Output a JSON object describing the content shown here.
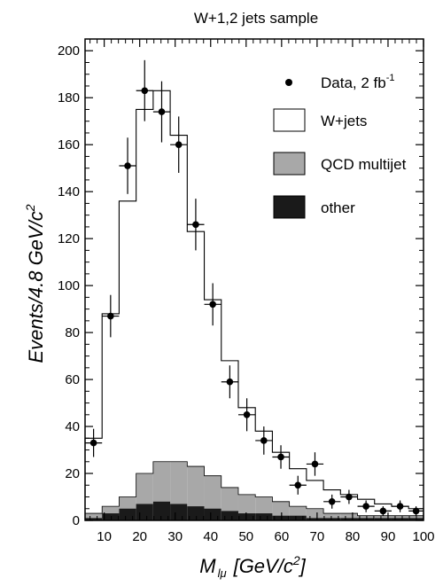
{
  "chart_data": {
    "type": "histogram",
    "title": "W+1,2 jets sample",
    "xlabel": {
      "main": "M",
      "sub": "lμ",
      "unit": "[GeV/c",
      "sup": "2",
      "close": "]"
    },
    "ylabel": {
      "main": "Events/4.8 GeV/c",
      "sup": "2"
    },
    "xlim": [
      4.6,
      100
    ],
    "ylim": [
      0,
      205
    ],
    "x_ticks": [
      10,
      20,
      30,
      40,
      50,
      60,
      70,
      80,
      90,
      100
    ],
    "y_ticks": [
      0,
      20,
      40,
      60,
      80,
      100,
      120,
      140,
      160,
      180,
      200
    ],
    "bin_edges": [
      4.6,
      9.4,
      14.2,
      19.0,
      23.8,
      28.6,
      33.4,
      38.2,
      43.0,
      47.8,
      52.6,
      57.4,
      62.2,
      67.0,
      71.8,
      76.6,
      81.4,
      86.2,
      91.0,
      95.8,
      100.0
    ],
    "legend": {
      "data": {
        "label": "Data, 2 fb",
        "sup": "-1"
      },
      "wjets": "W+jets",
      "qcd": "QCD multijet",
      "other": "other"
    },
    "colors": {
      "wjets": "#ffffff",
      "qcd": "#a8a8a8",
      "other": "#1a1a1a",
      "data": "#000000"
    },
    "series": [
      {
        "name": "other",
        "values": [
          1,
          3,
          5,
          7,
          8,
          7,
          6,
          5,
          4,
          3,
          3,
          2,
          2,
          1,
          1,
          1,
          1,
          1,
          1,
          1
        ]
      },
      {
        "name": "QCD multijet",
        "values": [
          3,
          6,
          10,
          20,
          25,
          25,
          23,
          19,
          14,
          11,
          10,
          8,
          6,
          5,
          3,
          3,
          2,
          2,
          2,
          2
        ]
      },
      {
        "name": "W+jets",
        "values": [
          35,
          88,
          136,
          175,
          183,
          164,
          123,
          94,
          68,
          48,
          38,
          29,
          22,
          17,
          13,
          11,
          9,
          7,
          6,
          5
        ]
      },
      {
        "name": "Data, 2 fb-1",
        "values": [
          33,
          87,
          151,
          183,
          174,
          160,
          126,
          92,
          59,
          45,
          34,
          27,
          15,
          24,
          8,
          10,
          6,
          4,
          6,
          4
        ],
        "errors": [
          6,
          9,
          12,
          13,
          13,
          12,
          11,
          9,
          7,
          7,
          6,
          5,
          4,
          5,
          3,
          3,
          2.5,
          2,
          2.5,
          2
        ]
      }
    ]
  }
}
